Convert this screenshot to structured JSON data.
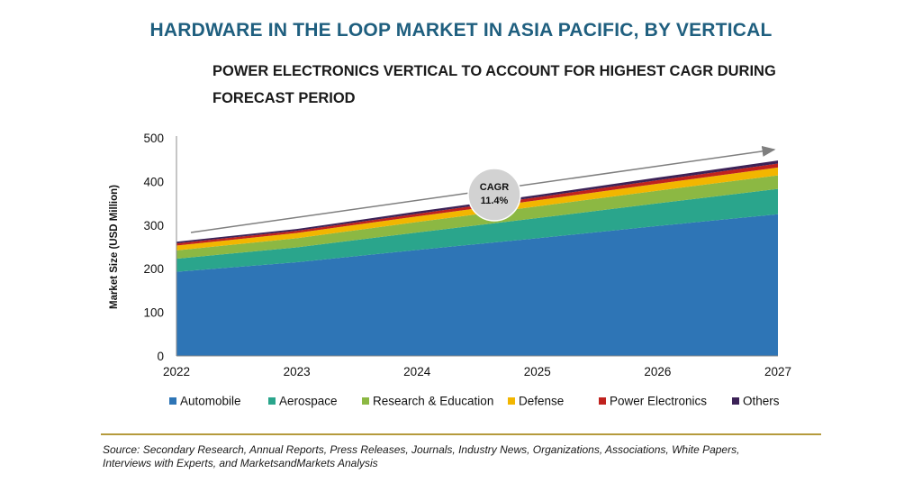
{
  "title": "HARDWARE IN THE LOOP MARKET IN ASIA PACIFIC, BY VERTICAL",
  "subtitle_line1": "POWER ELECTRONICS VERTICAL TO ACCOUNT FOR HIGHEST CAGR DURING",
  "subtitle_line2": "FORECAST PERIOD",
  "source_line1": "Source: Secondary Research, Annual Reports, Press Releases, Journals, Industry News, Organizations, Associations, White Papers,",
  "source_line2": "Interviews with Experts, and MarketsandMarkets Analysis",
  "colors": {
    "accent": "#1f5f7f",
    "divider": "#b59a3c",
    "cagr_badge": "#d2d2d2",
    "trend_arrow": "#7f7f7f"
  },
  "chart_data": {
    "type": "area",
    "stacked": true,
    "title": "",
    "xlabel": "",
    "ylabel": "Market Size (USD Million)",
    "x": [
      "2022",
      "2023",
      "2024",
      "2025",
      "2026",
      "2027"
    ],
    "ylim": [
      0,
      500
    ],
    "yticks": [
      0,
      100,
      200,
      300,
      400,
      500
    ],
    "grid": false,
    "legend_position": "bottom",
    "series": [
      {
        "name": "Automobile",
        "color": "#2e75b6",
        "values": [
          193,
          215,
          243,
          270,
          298,
          325
        ]
      },
      {
        "name": "Aerospace",
        "color": "#2aa58c",
        "values": [
          30,
          34,
          40,
          46,
          52,
          58
        ]
      },
      {
        "name": "Research & Education",
        "color": "#8cb843",
        "values": [
          19,
          21,
          24,
          27,
          29,
          31
        ]
      },
      {
        "name": "Defense",
        "color": "#f2b600",
        "values": [
          11,
          12,
          13,
          14,
          16,
          18
        ]
      },
      {
        "name": "Power Electronics",
        "color": "#c0221e",
        "values": [
          5,
          5,
          6,
          7,
          8,
          9
        ]
      },
      {
        "name": "Others",
        "color": "#3c2257",
        "values": [
          4,
          4,
          5,
          5,
          6,
          7
        ]
      }
    ],
    "annotation": {
      "label": "CAGR",
      "value": "11.4%"
    }
  }
}
